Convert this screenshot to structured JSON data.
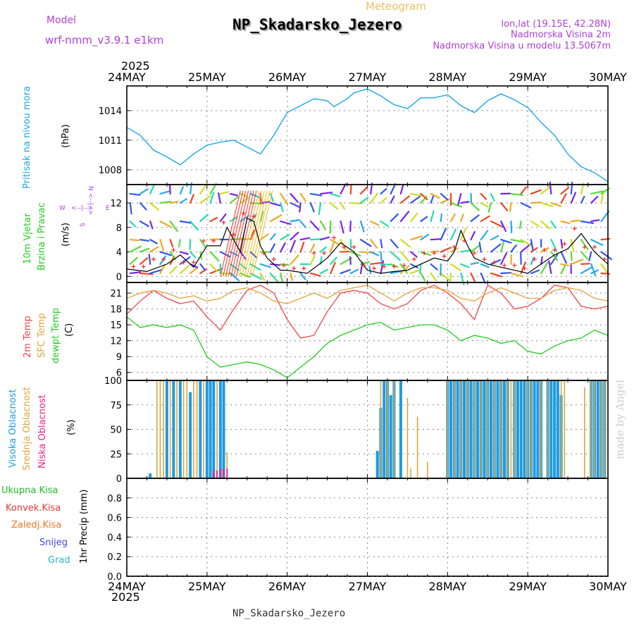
{
  "header": {
    "model_label": "Model",
    "model_name": "wrf-nmm_v3.9.1 e1km",
    "meteogram_label": "Meteogram",
    "station_title": "NP_Skadarsko_Jezero",
    "lonlat": "lon,lat (19.15E, 42.28N)",
    "elevation": "Nadmorska Visina 2m",
    "model_elevation": "Nadmorska Visina u modelu 13.5067m",
    "footer_station": "NP_Skadarsko_Jezero",
    "credit": "made by Angel"
  },
  "time_axis": {
    "year": "2025",
    "labels": [
      "24MAY",
      "25MAY",
      "26MAY",
      "27MAY",
      "28MAY",
      "29MAY",
      "30MAY"
    ]
  },
  "panels": {
    "pressure": {
      "title": "Pritisak na nivou mora",
      "unit": "(hPa)"
    },
    "wind": {
      "title": "10m Vjetar",
      "title2": "Brzina i Pravac",
      "unit": "(m/s)",
      "compass_n": "N",
      "compass_w": "W",
      "compass_e": "E",
      "compass_s": "S",
      "compass_arrow_v": "<--|-->",
      "compass_arrow_h": "<--|-->"
    },
    "temp": {
      "title1": "2m Temp",
      "title2": "SFC Temp",
      "title3": "dewpt Temp",
      "unit": "(C)"
    },
    "cloud": {
      "title1": "Visoka Oblacnost",
      "title2": "Srednja Oblacnost",
      "title3": "Niska Oblacnost",
      "unit": "(%)"
    },
    "precip": {
      "unit": "1hr Precip (mm)",
      "legend": [
        "Ukupna Kisa",
        "Konvek.Kisa",
        "Zaledj.Kisa",
        "Snijeg",
        "Grad"
      ]
    }
  },
  "colors": {
    "pressure": "#1aa7e6",
    "wind_speed": "#000000",
    "gust": "#ff2020",
    "temp2m": "#ee4444",
    "sfc": "#e3a33a",
    "dew": "#22cc22",
    "high_cloud": "#1e9be0",
    "mid_cloud": "#d9a640",
    "low_cloud": "#ee2288",
    "legend_rain": "#22bb22",
    "legend_conv": "#ee3333",
    "legend_frz": "#ee7722",
    "legend_snow": "#4444ee",
    "legend_hail": "#22bbbb",
    "purple_text": "#b040d8"
  },
  "chart_data": [
    {
      "type": "line",
      "title": "Pritisak na nivou mora",
      "ylabel": "(hPa)",
      "ylim": [
        1006.5,
        1016.5
      ],
      "yticks": [
        1008,
        1011,
        1014
      ],
      "x_hours": [
        0,
        4,
        8,
        12,
        16,
        20,
        24,
        28,
        32,
        36,
        40,
        44,
        48,
        52,
        56,
        60,
        62,
        66,
        68,
        72,
        76,
        80,
        84,
        88,
        92,
        96,
        100,
        104,
        108,
        112,
        116,
        120,
        124,
        128,
        132,
        136,
        140,
        144
      ],
      "series": [
        {
          "values": [
            1012.3,
            1011.5,
            1010.0,
            1009.3,
            1008.5,
            1009.6,
            1010.5,
            1010.8,
            1011.0,
            1010.3,
            1009.6,
            1011.5,
            1013.8,
            1014.5,
            1015.2,
            1015.0,
            1014.4,
            1015.2,
            1015.8,
            1016.2,
            1015.5,
            1014.6,
            1014.2,
            1015.3,
            1015.3,
            1015.6,
            1014.5,
            1013.8,
            1015.0,
            1015.7,
            1015.1,
            1014.3,
            1012.8,
            1011.5,
            1009.6,
            1008.3,
            1007.7,
            1006.8
          ]
        }
      ]
    },
    {
      "type": "line",
      "title": "10m Vjetar Brzina i Pravac",
      "ylabel": "(m/s)",
      "ylim": [
        -1,
        15
      ],
      "yticks": [
        0,
        4,
        8,
        12
      ],
      "x_hours": [
        0,
        6,
        12,
        16,
        20,
        24,
        28,
        30,
        32,
        34,
        36,
        38,
        40,
        42,
        44,
        46,
        48,
        54,
        60,
        64,
        68,
        72,
        76,
        80,
        84,
        88,
        92,
        96,
        98,
        100,
        102,
        104,
        108,
        112,
        116,
        120,
        124,
        128,
        132,
        136,
        140,
        144
      ],
      "series": [
        {
          "name": "speed",
          "values": [
            1.2,
            0.8,
            2.0,
            3.5,
            1.5,
            5.0,
            5.0,
            8.0,
            6.0,
            4.0,
            9.5,
            9.0,
            5.0,
            3.0,
            2.0,
            1.0,
            1.0,
            0.5,
            3.0,
            5.5,
            4.0,
            1.0,
            0.5,
            0.8,
            1.0,
            2.0,
            3.0,
            2.5,
            4.0,
            7.5,
            5.0,
            3.0,
            2.0,
            1.5,
            1.0,
            0.5,
            2.0,
            3.5,
            4.5,
            7.0,
            4.0,
            2.0
          ]
        }
      ]
    },
    {
      "type": "line",
      "title": "2m Temp / SFC Temp / dewpt Temp",
      "ylabel": "(C)",
      "ylim": [
        4.5,
        23
      ],
      "yticks": [
        6,
        9,
        12,
        15,
        18,
        21
      ],
      "x_hours": [
        0,
        4,
        8,
        12,
        16,
        20,
        24,
        28,
        32,
        36,
        40,
        44,
        48,
        52,
        56,
        60,
        64,
        68,
        72,
        76,
        80,
        84,
        88,
        92,
        96,
        100,
        104,
        108,
        112,
        116,
        120,
        124,
        128,
        132,
        136,
        140,
        144
      ],
      "series": [
        {
          "name": "2m Temp",
          "values": [
            17.0,
            19.5,
            21.5,
            20.0,
            19.0,
            19.5,
            16.5,
            14.0,
            18.0,
            21.5,
            22.5,
            21.0,
            16.0,
            12.5,
            13.0,
            17.5,
            21.0,
            21.5,
            21.0,
            19.0,
            18.0,
            19.0,
            21.5,
            22.5,
            21.0,
            19.0,
            16.0,
            22.5,
            21.0,
            18.0,
            18.5,
            20.0,
            22.5,
            22.0,
            18.5,
            18.0,
            18.5
          ]
        },
        {
          "name": "SFC Temp",
          "values": [
            20.0,
            21.0,
            21.5,
            21.0,
            20.0,
            20.5,
            19.5,
            20.0,
            21.5,
            22.0,
            21.0,
            19.5,
            19.0,
            20.0,
            21.0,
            20.0,
            21.5,
            22.0,
            22.5,
            21.0,
            19.5,
            21.0,
            22.0,
            22.0,
            21.5,
            20.0,
            19.5,
            21.0,
            22.0,
            21.0,
            20.0,
            20.0,
            21.5,
            22.0,
            21.5,
            20.0,
            19.5
          ]
        },
        {
          "name": "dewpt Temp",
          "values": [
            16.5,
            14.5,
            15.0,
            14.5,
            15.0,
            14.0,
            9.0,
            7.0,
            7.5,
            8.0,
            7.5,
            6.5,
            5.0,
            7.0,
            9.0,
            11.5,
            13.0,
            14.0,
            15.0,
            15.5,
            14.0,
            14.5,
            15.0,
            15.0,
            14.0,
            12.0,
            13.0,
            12.5,
            11.5,
            12.0,
            10.0,
            9.5,
            11.0,
            12.0,
            12.5,
            14.0,
            13.0
          ]
        }
      ]
    },
    {
      "type": "bar",
      "title": "Visoka / Srednja / Niska Oblacnost",
      "ylabel": "(%)",
      "ylim": [
        0,
        100
      ],
      "yticks": [
        0,
        25,
        50,
        75,
        100
      ],
      "series": [
        {
          "name": "Visoka Oblacnost",
          "x_hours": [
            7,
            12,
            14,
            16,
            19,
            22,
            24,
            25,
            26,
            28,
            29,
            75,
            76,
            77,
            78,
            79,
            80,
            82,
            96,
            97,
            98,
            99,
            100,
            101,
            102,
            103,
            104,
            105,
            106,
            107,
            108,
            109,
            110,
            111,
            112,
            113,
            114,
            116,
            117,
            118,
            119,
            120,
            121,
            122,
            123,
            124,
            126,
            127,
            128,
            129,
            130,
            139,
            140,
            141,
            142,
            143
          ],
          "values": [
            5,
            100,
            100,
            100,
            88,
            100,
            100,
            100,
            100,
            100,
            100,
            28,
            72,
            100,
            100,
            85,
            100,
            100,
            100,
            100,
            100,
            100,
            100,
            100,
            100,
            100,
            100,
            100,
            100,
            100,
            100,
            100,
            100,
            100,
            100,
            100,
            100,
            100,
            100,
            100,
            100,
            100,
            100,
            100,
            100,
            100,
            100,
            100,
            100,
            100,
            85,
            100,
            100,
            100,
            100,
            100
          ]
        },
        {
          "name": "Srednja Oblacnost",
          "x_hours": [
            9,
            10,
            11,
            13,
            15,
            17,
            18,
            20,
            21,
            23,
            27,
            30,
            76,
            78,
            80,
            84,
            85,
            87,
            90,
            96,
            98,
            100,
            102,
            104,
            106,
            108,
            110,
            112,
            114,
            115,
            116,
            120,
            121,
            124,
            126,
            130,
            131,
            139,
            140,
            142,
            143,
            137
          ],
          "values": [
            100,
            100,
            100,
            100,
            100,
            100,
            100,
            100,
            100,
            100,
            100,
            27,
            100,
            100,
            100,
            82,
            10,
            63,
            17,
            100,
            100,
            100,
            100,
            100,
            100,
            100,
            100,
            100,
            100,
            100,
            100,
            100,
            100,
            100,
            100,
            100,
            100,
            100,
            100,
            100,
            100,
            93
          ]
        },
        {
          "name": "Niska Oblacnost",
          "x_hours": [
            26,
            27,
            28,
            29,
            30,
            31,
            32,
            33,
            34,
            35,
            36,
            40,
            44,
            48,
            52,
            56,
            60,
            64,
            68,
            72,
            76,
            80,
            84,
            88,
            92,
            96,
            100,
            104,
            108,
            112,
            116,
            120,
            124,
            128,
            132,
            136,
            140,
            144
          ],
          "values": [
            8,
            8,
            10,
            10,
            10,
            0,
            0,
            0,
            0,
            0,
            0,
            0,
            0,
            0,
            0,
            0,
            0,
            0,
            0,
            0,
            0,
            0,
            0,
            0,
            0,
            0,
            0,
            0,
            0,
            0,
            0,
            0,
            0,
            0,
            0,
            0,
            0,
            0
          ]
        }
      ]
    },
    {
      "type": "bar",
      "title": "1hr Precip",
      "ylabel": "1hr Precip (mm)",
      "ylim": [
        0,
        1
      ],
      "yticks": [
        0,
        0.2,
        0.4,
        0.6,
        0.8
      ],
      "series": [
        {
          "name": "Ukupna Kisa",
          "values": []
        },
        {
          "name": "Konvek.Kisa",
          "values": []
        },
        {
          "name": "Zaledj.Kisa",
          "values": []
        },
        {
          "name": "Snijeg",
          "values": []
        },
        {
          "name": "Grad",
          "values": []
        }
      ]
    }
  ]
}
